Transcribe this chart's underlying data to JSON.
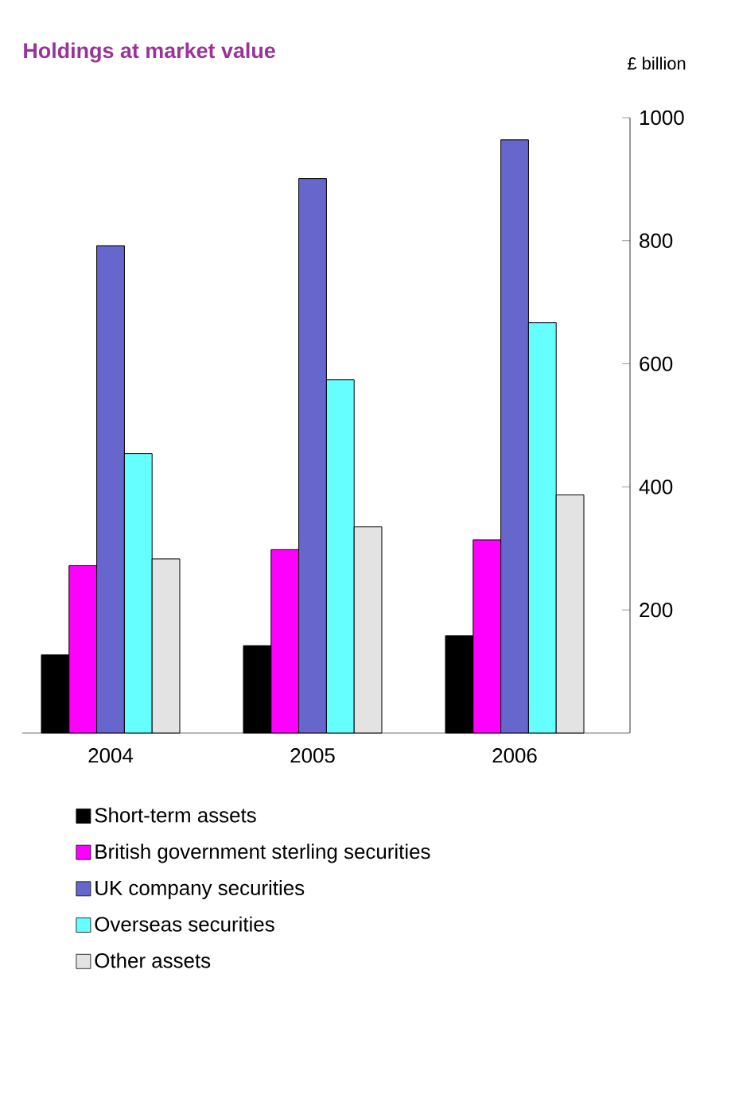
{
  "chart_data": {
    "type": "bar",
    "title": "Holdings at market value",
    "ylabel": "£ billion",
    "categories": [
      "2004",
      "2005",
      "2006"
    ],
    "series": [
      {
        "name": "Short-term assets",
        "color": "#000000",
        "values": [
          127,
          142,
          158
        ]
      },
      {
        "name": "British government sterling securities",
        "color": "#ff00ff",
        "values": [
          272,
          298,
          314
        ]
      },
      {
        "name": "UK company securities",
        "color": "#6666cc",
        "values": [
          792,
          901,
          964
        ]
      },
      {
        "name": "Overseas securities",
        "color": "#66ffff",
        "values": [
          454,
          574,
          667
        ]
      },
      {
        "name": "Other assets",
        "color": "#e3e3e3",
        "values": [
          283,
          335,
          387
        ]
      }
    ],
    "ylim": [
      0,
      1000
    ],
    "yticks": [
      200,
      400,
      600,
      800,
      1000
    ],
    "grid": false,
    "legend": "bottom"
  }
}
